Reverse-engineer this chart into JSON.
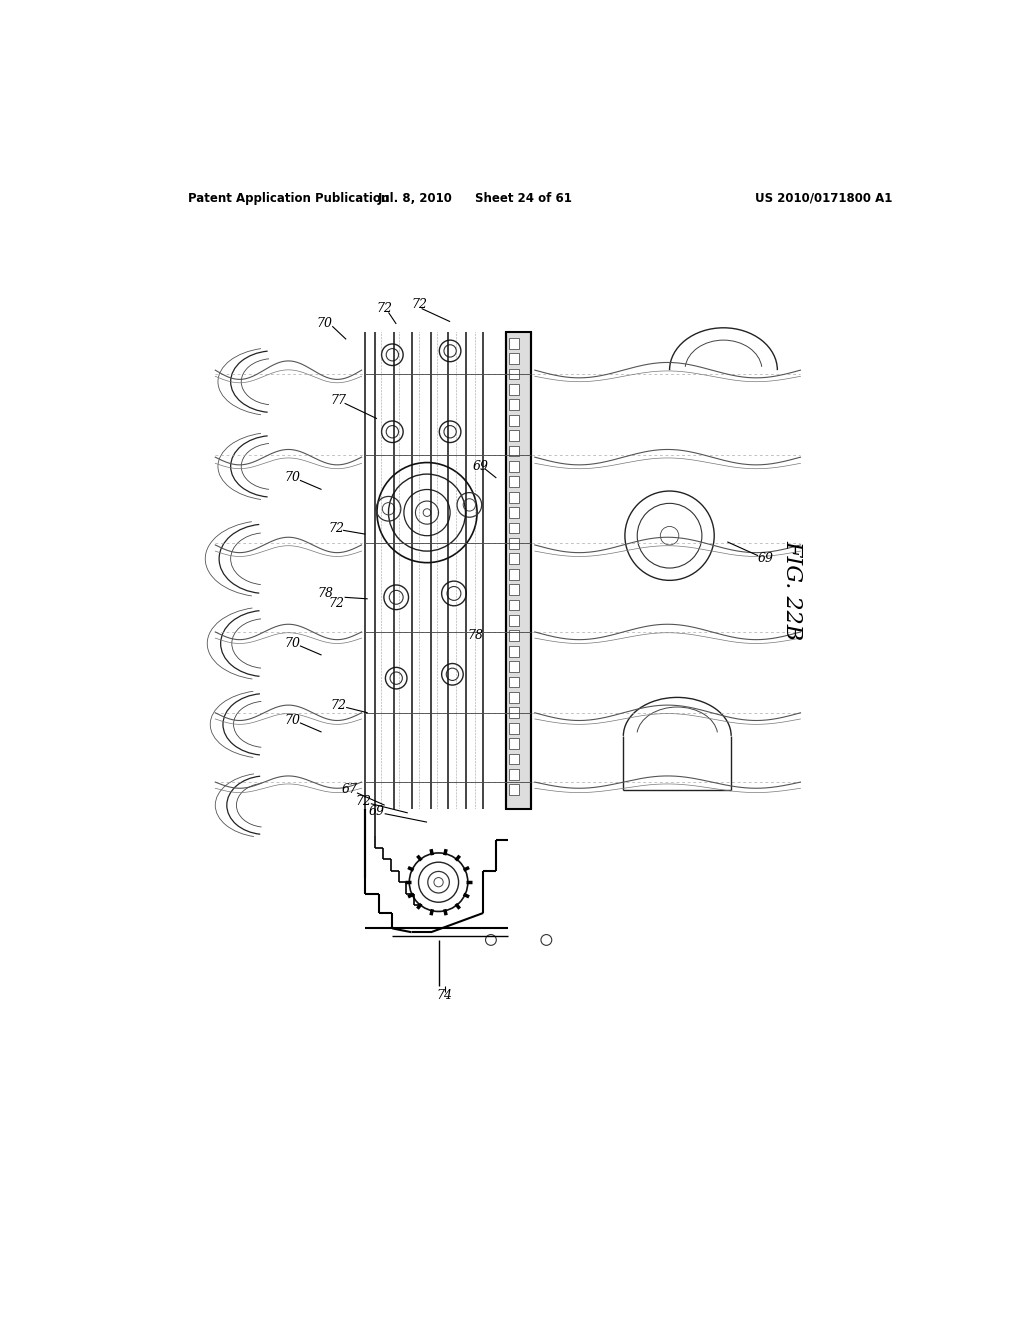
{
  "header_left": "Patent Application Publication",
  "header_mid": "Jul. 8, 2010",
  "header_mid2": "Sheet 24 of 61",
  "header_right": "US 2010/0171800 A1",
  "fig_label": "FIG. 22B",
  "background_color": "#ffffff"
}
